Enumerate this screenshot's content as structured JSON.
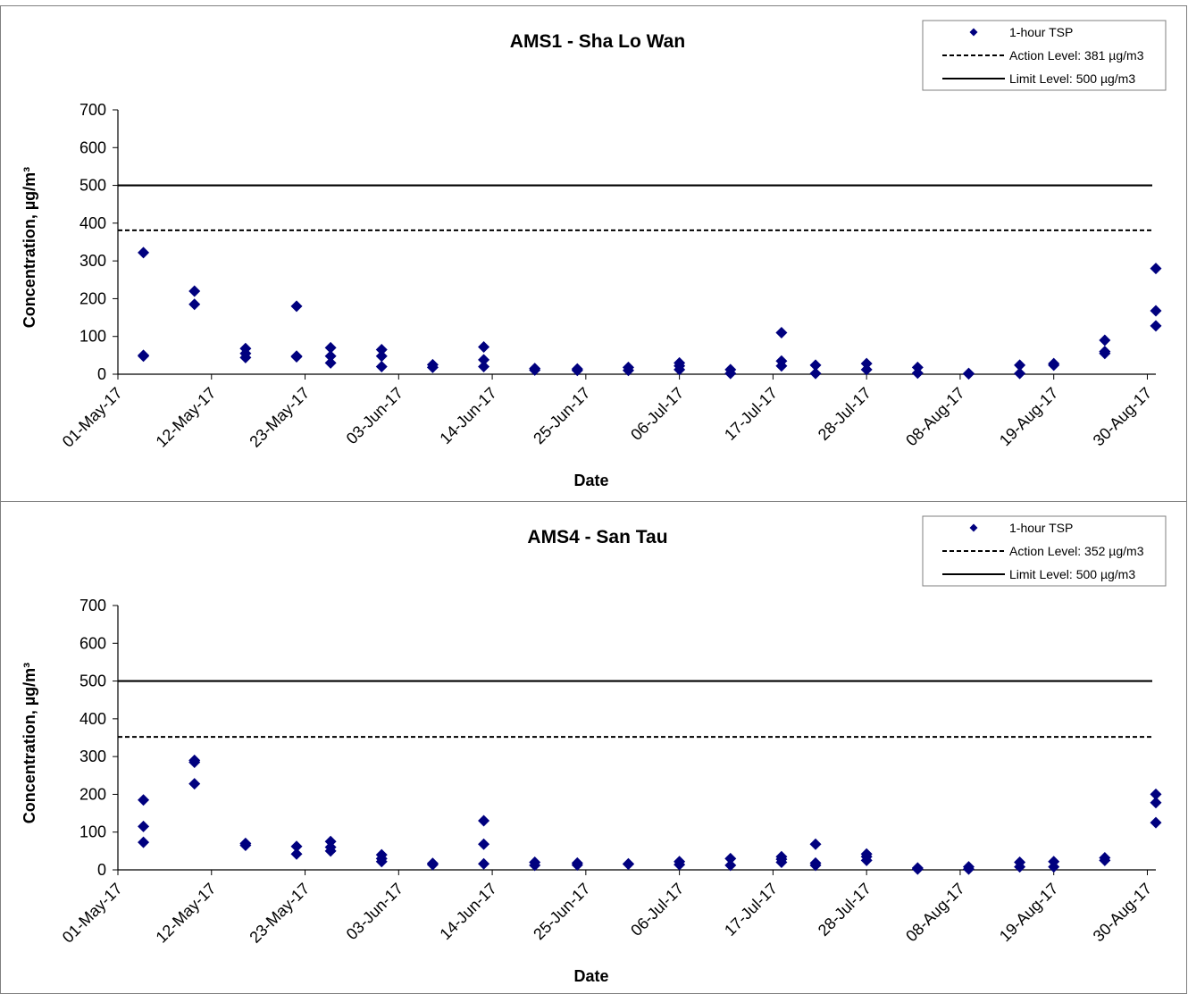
{
  "chart_data": [
    {
      "type": "scatter",
      "title": "AMS1 - Sha Lo Wan",
      "xlabel": "Date",
      "ylabel": "Concentration, µg/m³",
      "ylim": [
        0,
        700
      ],
      "yticks": [
        0,
        100,
        200,
        300,
        400,
        500,
        600,
        700
      ],
      "xlim": [
        "2017-05-01",
        "2017-08-31"
      ],
      "xtick_labels": [
        "01-May-17",
        "12-May-17",
        "23-May-17",
        "03-Jun-17",
        "14-Jun-17",
        "25-Jun-17",
        "06-Jul-17",
        "17-Jul-17",
        "28-Jul-17",
        "08-Aug-17",
        "19-Aug-17",
        "30-Aug-17"
      ],
      "xtick_dates": [
        "2017-05-01",
        "2017-05-12",
        "2017-05-23",
        "2017-06-03",
        "2017-06-14",
        "2017-06-25",
        "2017-07-06",
        "2017-07-17",
        "2017-07-28",
        "2017-08-08",
        "2017-08-19",
        "2017-08-30"
      ],
      "legend_position": "top-right",
      "marker_color": "#00007f",
      "series": [
        {
          "name": "1-hour TSP",
          "points": [
            {
              "x": "2017-05-04",
              "y": 322
            },
            {
              "x": "2017-05-04",
              "y": 48
            },
            {
              "x": "2017-05-04",
              "y": 50
            },
            {
              "x": "2017-05-10",
              "y": 220
            },
            {
              "x": "2017-05-10",
              "y": 185
            },
            {
              "x": "2017-05-16",
              "y": 68
            },
            {
              "x": "2017-05-16",
              "y": 55
            },
            {
              "x": "2017-05-16",
              "y": 44
            },
            {
              "x": "2017-05-22",
              "y": 180
            },
            {
              "x": "2017-05-22",
              "y": 48
            },
            {
              "x": "2017-05-22",
              "y": 46
            },
            {
              "x": "2017-05-26",
              "y": 70
            },
            {
              "x": "2017-05-26",
              "y": 48
            },
            {
              "x": "2017-05-26",
              "y": 30
            },
            {
              "x": "2017-06-01",
              "y": 65
            },
            {
              "x": "2017-06-01",
              "y": 48
            },
            {
              "x": "2017-06-01",
              "y": 20
            },
            {
              "x": "2017-06-07",
              "y": 25
            },
            {
              "x": "2017-06-07",
              "y": 18
            },
            {
              "x": "2017-06-13",
              "y": 72
            },
            {
              "x": "2017-06-13",
              "y": 38
            },
            {
              "x": "2017-06-13",
              "y": 20
            },
            {
              "x": "2017-06-19",
              "y": 15
            },
            {
              "x": "2017-06-19",
              "y": 11
            },
            {
              "x": "2017-06-24",
              "y": 14
            },
            {
              "x": "2017-06-24",
              "y": 10
            },
            {
              "x": "2017-06-30",
              "y": 18
            },
            {
              "x": "2017-06-30",
              "y": 10
            },
            {
              "x": "2017-07-06",
              "y": 30
            },
            {
              "x": "2017-07-06",
              "y": 22
            },
            {
              "x": "2017-07-06",
              "y": 12
            },
            {
              "x": "2017-07-12",
              "y": 12
            },
            {
              "x": "2017-07-12",
              "y": 2
            },
            {
              "x": "2017-07-18",
              "y": 110
            },
            {
              "x": "2017-07-18",
              "y": 35
            },
            {
              "x": "2017-07-18",
              "y": 22
            },
            {
              "x": "2017-07-22",
              "y": 24
            },
            {
              "x": "2017-07-22",
              "y": 2
            },
            {
              "x": "2017-07-28",
              "y": 28
            },
            {
              "x": "2017-07-28",
              "y": 12
            },
            {
              "x": "2017-08-03",
              "y": 18
            },
            {
              "x": "2017-08-03",
              "y": 3
            },
            {
              "x": "2017-08-09",
              "y": 2
            },
            {
              "x": "2017-08-09",
              "y": 1
            },
            {
              "x": "2017-08-15",
              "y": 24
            },
            {
              "x": "2017-08-15",
              "y": 2
            },
            {
              "x": "2017-08-19",
              "y": 28
            },
            {
              "x": "2017-08-19",
              "y": 24
            },
            {
              "x": "2017-08-25",
              "y": 90
            },
            {
              "x": "2017-08-25",
              "y": 60
            },
            {
              "x": "2017-08-25",
              "y": 55
            },
            {
              "x": "2017-08-31",
              "y": 280
            },
            {
              "x": "2017-08-31",
              "y": 168
            },
            {
              "x": "2017-08-31",
              "y": 128
            }
          ]
        },
        {
          "name": "Action Level: 381 µg/m3",
          "level": 381,
          "style": "dashed"
        },
        {
          "name": "Limit Level: 500 µg/m3",
          "level": 500,
          "style": "solid"
        }
      ]
    },
    {
      "type": "scatter",
      "title": "AMS4 - San Tau",
      "xlabel": "Date",
      "ylabel": "Concentration, µg/m³",
      "ylim": [
        0,
        700
      ],
      "yticks": [
        0,
        100,
        200,
        300,
        400,
        500,
        600,
        700
      ],
      "xlim": [
        "2017-05-01",
        "2017-08-31"
      ],
      "xtick_labels": [
        "01-May-17",
        "12-May-17",
        "23-May-17",
        "03-Jun-17",
        "14-Jun-17",
        "25-Jun-17",
        "06-Jul-17",
        "17-Jul-17",
        "28-Jul-17",
        "08-Aug-17",
        "19-Aug-17",
        "30-Aug-17"
      ],
      "xtick_dates": [
        "2017-05-01",
        "2017-05-12",
        "2017-05-23",
        "2017-06-03",
        "2017-06-14",
        "2017-06-25",
        "2017-07-06",
        "2017-07-17",
        "2017-07-28",
        "2017-08-08",
        "2017-08-19",
        "2017-08-30"
      ],
      "legend_position": "top-right",
      "marker_color": "#00007f",
      "series": [
        {
          "name": "1-hour TSP",
          "points": [
            {
              "x": "2017-05-04",
              "y": 185
            },
            {
              "x": "2017-05-04",
              "y": 115
            },
            {
              "x": "2017-05-04",
              "y": 73
            },
            {
              "x": "2017-05-10",
              "y": 290
            },
            {
              "x": "2017-05-10",
              "y": 285
            },
            {
              "x": "2017-05-10",
              "y": 228
            },
            {
              "x": "2017-05-16",
              "y": 70
            },
            {
              "x": "2017-05-16",
              "y": 65
            },
            {
              "x": "2017-05-22",
              "y": 62
            },
            {
              "x": "2017-05-22",
              "y": 42
            },
            {
              "x": "2017-05-26",
              "y": 75
            },
            {
              "x": "2017-05-26",
              "y": 60
            },
            {
              "x": "2017-05-26",
              "y": 50
            },
            {
              "x": "2017-06-01",
              "y": 40
            },
            {
              "x": "2017-06-01",
              "y": 30
            },
            {
              "x": "2017-06-01",
              "y": 22
            },
            {
              "x": "2017-06-07",
              "y": 17
            },
            {
              "x": "2017-06-07",
              "y": 14
            },
            {
              "x": "2017-06-13",
              "y": 130
            },
            {
              "x": "2017-06-13",
              "y": 68
            },
            {
              "x": "2017-06-13",
              "y": 16
            },
            {
              "x": "2017-06-19",
              "y": 20
            },
            {
              "x": "2017-06-19",
              "y": 12
            },
            {
              "x": "2017-06-24",
              "y": 18
            },
            {
              "x": "2017-06-24",
              "y": 13
            },
            {
              "x": "2017-06-30",
              "y": 16
            },
            {
              "x": "2017-06-30",
              "y": 15
            },
            {
              "x": "2017-07-06",
              "y": 22
            },
            {
              "x": "2017-07-06",
              "y": 14
            },
            {
              "x": "2017-07-12",
              "y": 30
            },
            {
              "x": "2017-07-12",
              "y": 12
            },
            {
              "x": "2017-07-18",
              "y": 35
            },
            {
              "x": "2017-07-18",
              "y": 28
            },
            {
              "x": "2017-07-18",
              "y": 20
            },
            {
              "x": "2017-07-22",
              "y": 68
            },
            {
              "x": "2017-07-22",
              "y": 18
            },
            {
              "x": "2017-07-22",
              "y": 12
            },
            {
              "x": "2017-07-28",
              "y": 42
            },
            {
              "x": "2017-07-28",
              "y": 35
            },
            {
              "x": "2017-07-28",
              "y": 25
            },
            {
              "x": "2017-08-03",
              "y": 5
            },
            {
              "x": "2017-08-03",
              "y": 2
            },
            {
              "x": "2017-08-09",
              "y": 8
            },
            {
              "x": "2017-08-09",
              "y": 2
            },
            {
              "x": "2017-08-15",
              "y": 20
            },
            {
              "x": "2017-08-15",
              "y": 8
            },
            {
              "x": "2017-08-19",
              "y": 22
            },
            {
              "x": "2017-08-19",
              "y": 8
            },
            {
              "x": "2017-08-25",
              "y": 32
            },
            {
              "x": "2017-08-25",
              "y": 25
            },
            {
              "x": "2017-08-31",
              "y": 200
            },
            {
              "x": "2017-08-31",
              "y": 178
            },
            {
              "x": "2017-08-31",
              "y": 125
            }
          ]
        },
        {
          "name": "Action Level: 352 µg/m3",
          "level": 352,
          "style": "dashed"
        },
        {
          "name": "Limit Level: 500 µg/m3",
          "level": 500,
          "style": "solid"
        }
      ]
    }
  ]
}
